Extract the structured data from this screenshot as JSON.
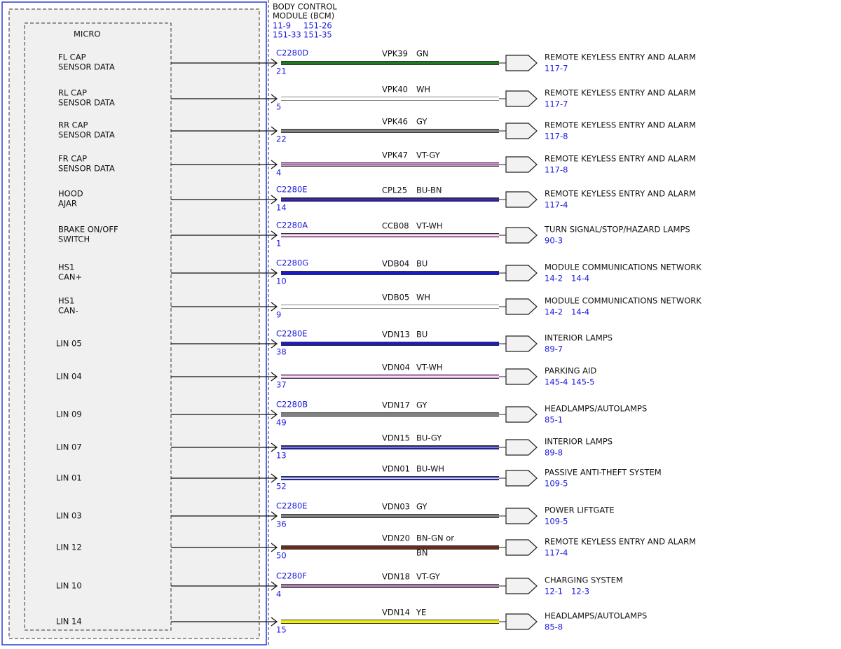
{
  "module": {
    "title": [
      "BODY CONTROL",
      "MODULE (BCM)"
    ],
    "refs": [
      "11-9",
      "151-26",
      "151-33",
      "151-35"
    ],
    "micro": "MICRO"
  },
  "circuits": [
    {
      "signal": [
        "FL CAP",
        "SENSOR DATA"
      ],
      "connector": "C2280D",
      "pin": "21",
      "circuit": "VPK39",
      "code": [
        "GN"
      ],
      "wire": {
        "color": "#1f7a1f"
      },
      "destination": "REMOTE KEYLESS ENTRY AND ALARM",
      "refs": [
        "117-7"
      ]
    },
    {
      "signal": [
        "RL CAP",
        "SENSOR DATA"
      ],
      "pin": "5",
      "circuit": "VPK40",
      "code": [
        "WH"
      ],
      "wire": {
        "color": "#ffffff"
      },
      "destination": "REMOTE KEYLESS ENTRY AND ALARM",
      "refs": [
        "117-7"
      ]
    },
    {
      "signal": [
        "RR CAP",
        "SENSOR DATA"
      ],
      "pin": "22",
      "circuit": "VPK46",
      "code": [
        "GY"
      ],
      "wire": {
        "color": "#808080"
      },
      "destination": "REMOTE KEYLESS ENTRY AND ALARM",
      "refs": [
        "117-8"
      ]
    },
    {
      "signal": [
        "FR CAP",
        "SENSOR DATA"
      ],
      "pin": "4",
      "circuit": "VPK47",
      "code": [
        "VT-GY"
      ],
      "wire": {
        "color": "#d88ad8",
        "stripe": "#808080"
      },
      "destination": "REMOTE KEYLESS ENTRY AND ALARM",
      "refs": [
        "117-8"
      ]
    },
    {
      "signal": [
        "HOOD",
        "AJAR"
      ],
      "connector": "C2280E",
      "pin": "14",
      "circuit": "CPL25",
      "code": [
        "BU-BN"
      ],
      "wire": {
        "color": "#1a1ad0",
        "stripe": "#6b3a1a"
      },
      "destination": "REMOTE KEYLESS ENTRY AND ALARM",
      "refs": [
        "117-4"
      ]
    },
    {
      "signal": [
        "BRAKE ON/OFF",
        "SWITCH"
      ],
      "connector": "C2280A",
      "pin": "1",
      "circuit": "CCB08",
      "code": [
        "VT-WH"
      ],
      "wire": {
        "color": "#d88ad8",
        "stripe": "#ffffff"
      },
      "destination": "TURN SIGNAL/STOP/HAZARD LAMPS",
      "refs": [
        "90-3"
      ]
    },
    {
      "signal": [
        "HS1",
        "CAN+"
      ],
      "connector": "C2280G",
      "pin": "10",
      "circuit": "VDB04",
      "code": [
        "BU"
      ],
      "wire": {
        "color": "#1a1ad0"
      },
      "destination": "MODULE COMMUNICATIONS NETWORK",
      "refs": [
        "14-2",
        "14-4"
      ]
    },
    {
      "signal": [
        "HS1",
        "CAN-"
      ],
      "pin": "9",
      "circuit": "VDB05",
      "code": [
        "WH"
      ],
      "wire": {
        "color": "#ffffff"
      },
      "destination": "MODULE COMMUNICATIONS NETWORK",
      "refs": [
        "14-2",
        "14-4"
      ]
    },
    {
      "signal": [
        "LIN 05"
      ],
      "connector": "C2280E",
      "pin": "38",
      "circuit": "VDN13",
      "code": [
        "BU"
      ],
      "wire": {
        "color": "#1a1ad0"
      },
      "destination": "INTERIOR LAMPS",
      "refs": [
        "89-7"
      ]
    },
    {
      "signal": [
        "LIN 04"
      ],
      "pin": "37",
      "circuit": "VDN04",
      "code": [
        "VT-WH"
      ],
      "wire": {
        "color": "#d88ad8",
        "stripe": "#ffffff"
      },
      "destination": "PARKING AID",
      "refs": [
        "145-4",
        "145-5"
      ]
    },
    {
      "signal": [
        "LIN 09"
      ],
      "connector": "C2280B",
      "pin": "49",
      "circuit": "VDN17",
      "code": [
        "GY"
      ],
      "wire": {
        "color": "#808080"
      },
      "destination": "HEADLAMPS/AUTOLAMPS",
      "refs": [
        "85-1"
      ]
    },
    {
      "signal": [
        "LIN 07"
      ],
      "pin": "13",
      "circuit": "VDN15",
      "code": [
        "BU-GY"
      ],
      "wire": {
        "color": "#1a1ad0",
        "stripe": "#a0a0a0"
      },
      "destination": "INTERIOR LAMPS",
      "refs": [
        "89-8"
      ]
    },
    {
      "signal": [
        "LIN 01"
      ],
      "pin": "52",
      "circuit": "VDN01",
      "code": [
        "BU-WH"
      ],
      "wire": {
        "color": "#1a1ad0",
        "stripe": "#ffffff"
      },
      "destination": "PASSIVE ANTI-THEFT SYSTEM",
      "refs": [
        "109-5"
      ]
    },
    {
      "signal": [
        "LIN 03"
      ],
      "connector": "C2280E",
      "pin": "36",
      "circuit": "VDN03",
      "code": [
        "GY"
      ],
      "wire": {
        "color": "#808080"
      },
      "destination": "POWER LIFTGATE",
      "refs": [
        "109-5"
      ]
    },
    {
      "signal": [
        "LIN 12"
      ],
      "pin": "50",
      "circuit": "VDN20",
      "code": [
        "BN-GN or",
        "BN"
      ],
      "wire": {
        "color": "#6b2a1a"
      },
      "destination": "REMOTE KEYLESS ENTRY AND ALARM",
      "refs": [
        "117-4"
      ]
    },
    {
      "signal": [
        "LIN 10"
      ],
      "connector": "C2280F",
      "pin": "4",
      "circuit": "VDN18",
      "code": [
        "VT-GY"
      ],
      "wire": {
        "color": "#d88ad8",
        "stripe": "#808080"
      },
      "destination": "CHARGING SYSTEM",
      "refs": [
        "12-1",
        "12-3"
      ]
    },
    {
      "signal": [
        "LIN 14"
      ],
      "pin": "15",
      "circuit": "VDN14",
      "code": [
        "YE"
      ],
      "wire": {
        "color": "#f0f000"
      },
      "destination": "HEADLAMPS/AUTOLAMPS",
      "refs": [
        "85-8"
      ]
    }
  ]
}
